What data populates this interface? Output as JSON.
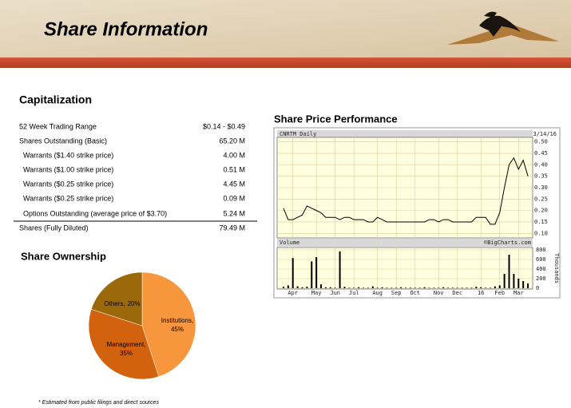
{
  "header": {
    "title": "Share Information"
  },
  "capitalization": {
    "title": "Capitalization",
    "rows": [
      [
        "52 Week Trading Range",
        "$0.14 - $0.49"
      ],
      [
        "Shares  Outstanding (Basic)",
        "65.20 M"
      ],
      [
        "Warrants ($1.40 strike price)",
        "4.00 M"
      ],
      [
        "Warrants ($1.00 strike price)",
        "0.51 M"
      ],
      [
        "Warrants ($0.25 strike price)",
        "4.45 M"
      ],
      [
        "Warrants ($0.25 strike price)",
        "0.09 M"
      ],
      [
        "Options Outstanding (average price of $3.70)",
        "5.24 M"
      ],
      [
        "Shares  (Fully Diluted)",
        "79.49 M"
      ]
    ]
  },
  "footnote": "*  Estimated from public filings and direct sources",
  "chart_data": [
    {
      "type": "pie",
      "title": "Share Ownership",
      "categories": [
        "Institutions,",
        "Management,",
        "Others,"
      ],
      "values": [
        45,
        35,
        20
      ],
      "value_labels": [
        "45%",
        "35%",
        "20%"
      ],
      "colors": [
        "#f7963c",
        "#d2620e",
        "#9a6a0a"
      ]
    },
    {
      "type": "line",
      "title": "Share Price Performance",
      "label": "CNRTM Daily",
      "date": "3/14/16",
      "color": "#000000",
      "grid": true,
      "categories": [
        null,
        null,
        "Apr",
        null,
        null,
        null,
        null,
        "May",
        null,
        null,
        null,
        "Jun",
        null,
        null,
        null,
        "Jul",
        null,
        null,
        null,
        null,
        "Aug",
        null,
        null,
        null,
        "Sep",
        null,
        null,
        null,
        "Oct",
        null,
        null,
        null,
        null,
        "Nov",
        null,
        null,
        null,
        "Dec",
        null,
        null,
        null,
        null,
        "16",
        null,
        null,
        null,
        "Feb",
        null,
        null,
        null,
        "Mar",
        null,
        null
      ],
      "values": [
        0.21,
        0.16,
        0.16,
        0.17,
        0.18,
        0.22,
        0.21,
        0.2,
        0.19,
        0.17,
        0.17,
        0.17,
        0.16,
        0.17,
        0.17,
        0.16,
        0.16,
        0.16,
        0.15,
        0.15,
        0.17,
        0.16,
        0.15,
        0.15,
        0.15,
        0.15,
        0.15,
        0.15,
        0.15,
        0.15,
        0.15,
        0.16,
        0.16,
        0.15,
        0.16,
        0.16,
        0.15,
        0.15,
        0.15,
        0.15,
        0.15,
        0.17,
        0.17,
        0.17,
        0.14,
        0.14,
        0.19,
        0.3,
        0.4,
        0.43,
        0.38,
        0.42,
        0.35
      ],
      "ylim": [
        0.08,
        0.52
      ],
      "yticks": [
        {
          "value": 0.5,
          "label": "0.50"
        },
        0.45,
        {
          "value": 0.4,
          "label": "0.40"
        },
        0.35,
        {
          "value": 0.3,
          "label": "0.30"
        },
        0.25,
        {
          "value": 0.2,
          "label": "0.20"
        },
        0.15,
        {
          "value": 0.1,
          "label": "0.10"
        }
      ]
    },
    {
      "type": "bar",
      "label": "Volume",
      "credit": "©BigCharts.com",
      "y_label": "Thousands",
      "color": "#000000",
      "grid": true,
      "values": [
        30,
        60,
        630,
        40,
        20,
        30,
        560,
        650,
        80,
        20,
        20,
        10,
        770,
        30,
        10,
        10,
        20,
        10,
        10,
        40,
        10,
        20,
        10,
        10,
        10,
        20,
        10,
        10,
        10,
        10,
        20,
        10,
        10,
        10,
        20,
        10,
        10,
        10,
        10,
        10,
        10,
        30,
        20,
        10,
        10,
        40,
        60,
        300,
        700,
        300,
        200,
        150,
        100
      ],
      "ylim": [
        0,
        850
      ],
      "yticks": [
        800,
        600,
        400,
        200,
        0
      ]
    }
  ]
}
